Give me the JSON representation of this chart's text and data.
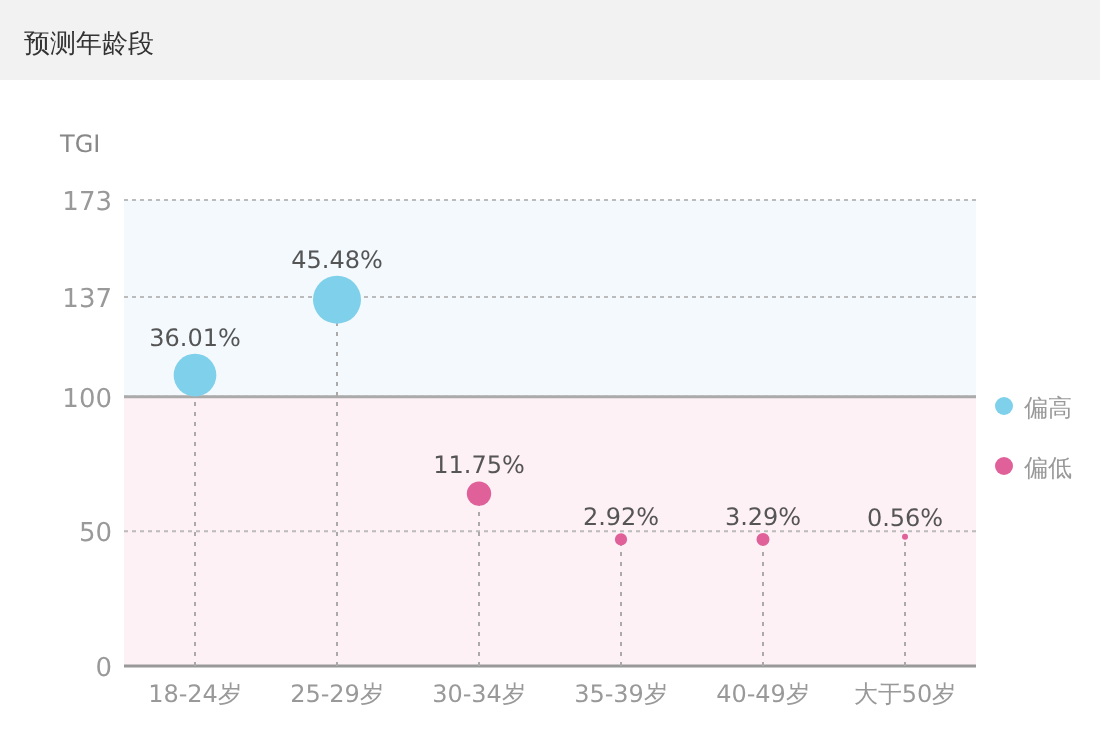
{
  "chart_data": {
    "type": "lollipop",
    "title": "预测年龄段",
    "ylabel": "TGI",
    "categories": [
      "18-24岁",
      "25-29岁",
      "30-34岁",
      "35-39岁",
      "40-49岁",
      "大于50岁"
    ],
    "series": [
      {
        "name": "偏高",
        "color": "#7fd0ea",
        "values": [
          108,
          136,
          null,
          null,
          null,
          null
        ],
        "sizes": [
          0.792,
          1,
          null,
          null,
          null,
          null
        ]
      },
      {
        "name": "偏低",
        "color": "#e0609a",
        "values": [
          null,
          null,
          64,
          47,
          47,
          48
        ],
        "sizes": [
          null,
          null,
          0.258,
          0.064,
          0.072,
          0.012
        ]
      }
    ],
    "annotations": [
      {
        "text": "36.01%",
        "x": "18-24岁",
        "y": 108
      },
      {
        "text": "45.48%",
        "x": "25-29岁",
        "y": 136
      },
      {
        "text": "11.75%",
        "x": "30-34岁",
        "y": 64
      },
      {
        "text": "2.92%",
        "x": "35-39岁",
        "y": 47
      },
      {
        "text": "3.29%",
        "x": "40-49岁",
        "y": 47
      },
      {
        "text": "0.56%",
        "x": "大于50岁",
        "y": 48
      }
    ],
    "ylim": [
      0,
      173
    ],
    "yticks": [
      0,
      50,
      100,
      137,
      173
    ],
    "grid": "y",
    "line_style": "dotted",
    "marker": "circle",
    "legend": "right",
    "ref_lines": [
      {
        "axis": "y",
        "value": 100,
        "color": "#aaaaaa"
      }
    ],
    "bands": [
      {
        "axis": "y",
        "from": 100,
        "to": 173,
        "color": "#f3f9fd"
      },
      {
        "axis": "y",
        "from": 0,
        "to": 100,
        "color": "#fdf1f5"
      }
    ]
  }
}
